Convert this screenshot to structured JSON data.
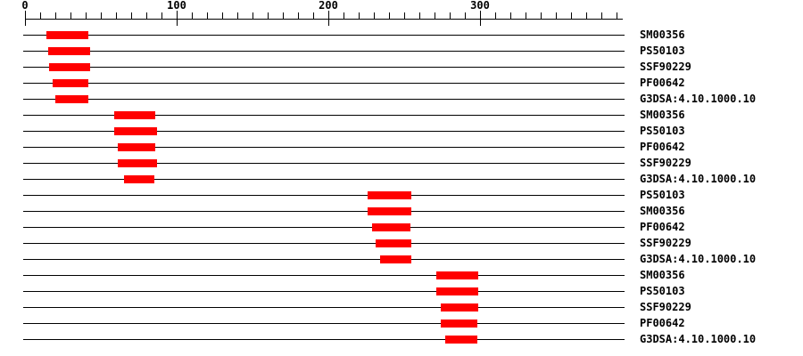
{
  "page": {
    "background_color": "#ffffff",
    "text_color": "#000000"
  },
  "chart_data": {
    "type": "bar",
    "subtype": "protein-domain-architecture",
    "orientation": "horizontal-span",
    "title": "",
    "xlabel": "",
    "ylabel": "",
    "bar_color": "#ff0000",
    "line_color": "#000000",
    "x_axis": {
      "min": 0,
      "max": 395,
      "major_ticks": [
        0,
        100,
        200,
        300
      ],
      "minor_tick_interval": 10,
      "minor_tick_max": 390,
      "grid": false
    },
    "legend": null,
    "rows": [
      {
        "label": "SM00356",
        "start": 14,
        "end": 42
      },
      {
        "label": "PS50103",
        "start": 15,
        "end": 43
      },
      {
        "label": "SSF90229",
        "start": 16,
        "end": 43
      },
      {
        "label": "PF00642",
        "start": 18,
        "end": 42
      },
      {
        "label": "G3DSA:4.10.1000.10",
        "start": 20,
        "end": 42
      },
      {
        "label": "SM00356",
        "start": 59,
        "end": 86
      },
      {
        "label": "PS50103",
        "start": 59,
        "end": 87
      },
      {
        "label": "PF00642",
        "start": 61,
        "end": 86
      },
      {
        "label": "SSF90229",
        "start": 61,
        "end": 87
      },
      {
        "label": "G3DSA:4.10.1000.10",
        "start": 65,
        "end": 85
      },
      {
        "label": "PS50103",
        "start": 226,
        "end": 255
      },
      {
        "label": "SM00356",
        "start": 226,
        "end": 255
      },
      {
        "label": "PF00642",
        "start": 229,
        "end": 254
      },
      {
        "label": "SSF90229",
        "start": 231,
        "end": 255
      },
      {
        "label": "G3DSA:4.10.1000.10",
        "start": 234,
        "end": 255
      },
      {
        "label": "SM00356",
        "start": 271,
        "end": 299
      },
      {
        "label": "PS50103",
        "start": 271,
        "end": 299
      },
      {
        "label": "SSF90229",
        "start": 274,
        "end": 299
      },
      {
        "label": "PF00642",
        "start": 274,
        "end": 298
      },
      {
        "label": "G3DSA:4.10.1000.10",
        "start": 277,
        "end": 298
      }
    ]
  }
}
